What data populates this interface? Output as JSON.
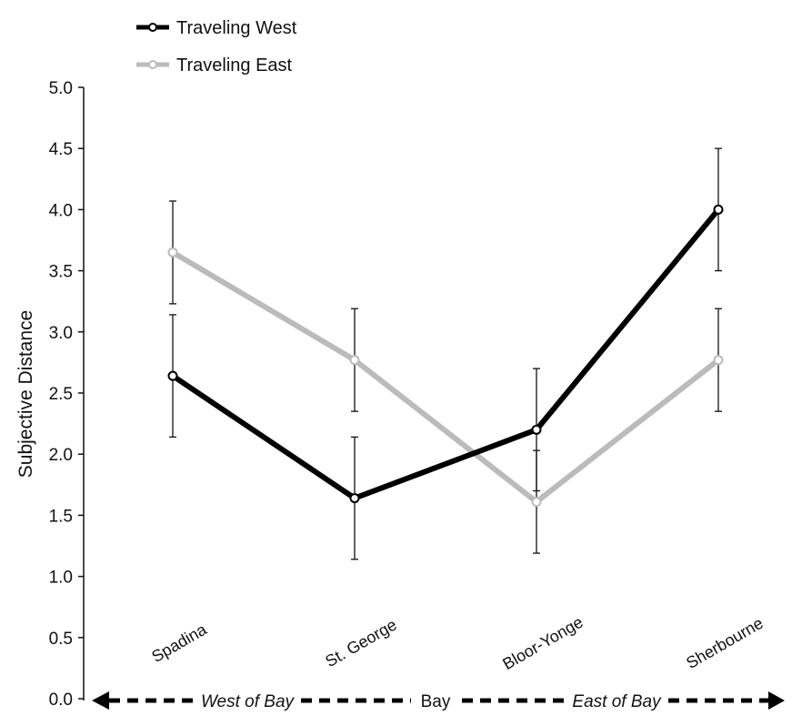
{
  "chart_data": {
    "type": "line",
    "categories": [
      "Spadina",
      "St. George",
      "Bloor-Yonge",
      "Sherbourne"
    ],
    "series": [
      {
        "name": "Traveling West",
        "values": [
          2.64,
          1.64,
          2.2,
          4.0
        ],
        "error": [
          0.5,
          0.5,
          0.5,
          0.5
        ],
        "color": "#000000"
      },
      {
        "name": "Traveling East",
        "values": [
          3.65,
          2.77,
          1.61,
          2.77
        ],
        "error": [
          0.42,
          0.42,
          0.42,
          0.42
        ],
        "color": "#bbbbbb"
      }
    ],
    "ylabel": "Subjective Distance",
    "ylim": [
      0,
      5
    ],
    "yticks": [
      "0.0",
      "0.5",
      "1.0",
      "1.5",
      "2.0",
      "2.5",
      "3.0",
      "3.5",
      "4.0",
      "4.5",
      "5.0"
    ],
    "legend_position": "top-left",
    "grid": false,
    "direction_axis": {
      "left_label": "West of Bay",
      "center_label": "Bay",
      "right_label": "East of Bay"
    }
  }
}
